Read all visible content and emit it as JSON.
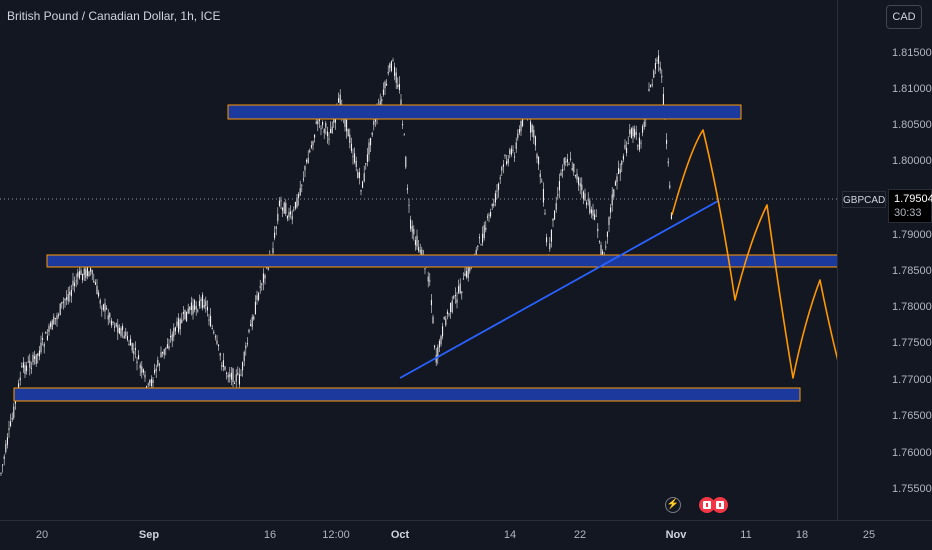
{
  "header": {
    "title": "British Pound / Canadian Dollar, 1h, ICE"
  },
  "price_axis": {
    "currency": "CAD",
    "ticks": [
      "1.81500",
      "1.81000",
      "1.80500",
      "1.80000",
      "1.79500",
      "1.79000",
      "1.78500",
      "1.78000",
      "1.77500",
      "1.77000",
      "1.76500",
      "1.76000",
      "1.75500"
    ],
    "symbol": "GBPCAD",
    "last_price": "1.79504",
    "countdown": "30:33"
  },
  "time_axis": {
    "ticks": [
      "20",
      "Sep",
      "16",
      "12:00",
      "Oct",
      "14",
      "22",
      "Nov",
      "11",
      "18",
      "25"
    ]
  },
  "colors": {
    "background": "#131722",
    "candle": "#ffffff",
    "zone_fill": "#1c3a9e",
    "zone_border": "#ff9800",
    "trendline": "#2962ff",
    "projection": "#ff9800",
    "event_red": "#f23645"
  },
  "events": [
    "lightning-icon",
    "canada-flag-icon",
    "canada-flag-icon"
  ]
}
